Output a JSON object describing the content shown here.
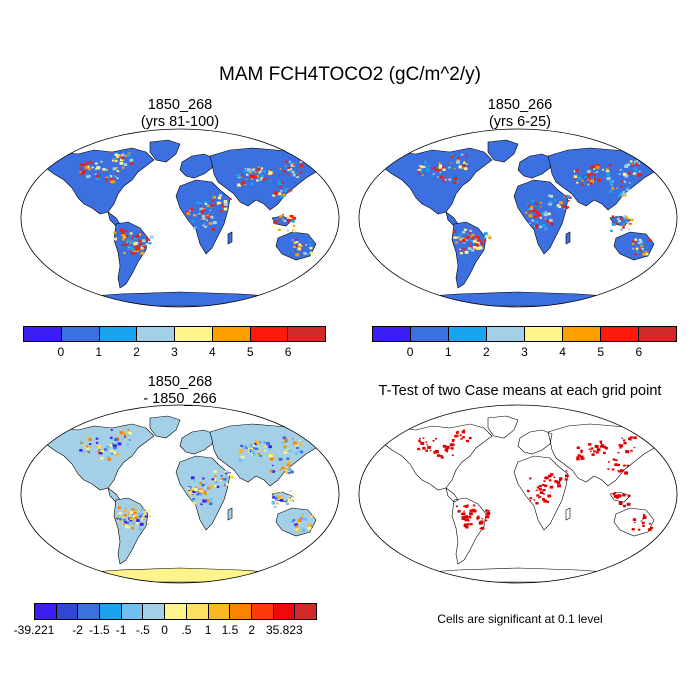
{
  "title": "MAM FCH4TOCO2 (gC/m^2/y)",
  "panels": [
    {
      "id": "p1",
      "title_line1": "1850_268",
      "title_line2": "(yrs 81-100)"
    },
    {
      "id": "p2",
      "title_line1": "1850_266",
      "title_line2": "(yrs 6-25)"
    },
    {
      "id": "p3",
      "title_line1": "1850_268",
      "title_line2": "- 1850_266"
    },
    {
      "id": "p4",
      "title_line1": "T-Test of two Case means at each grid point",
      "title_line2": ""
    }
  ],
  "colorbar_top": {
    "colors": [
      "#3b1ff2",
      "#3c6fe0",
      "#1aa4f0",
      "#a3d0e6",
      "#fff48c",
      "#fca000",
      "#fc1a0a",
      "#d12828"
    ],
    "labels": [
      "0",
      "1",
      "2",
      "3",
      "4",
      "5",
      "6"
    ]
  },
  "colorbar_diff": {
    "colors": [
      "#3b1ff2",
      "#2f46d6",
      "#3c6fe0",
      "#1aa4f0",
      "#6fbff0",
      "#a3d0e6",
      "#fff48c",
      "#ffe060",
      "#fcb820",
      "#fc8200",
      "#fc3a0a",
      "#ec0a0a",
      "#d12828"
    ],
    "labels": [
      "-39.221",
      "-2",
      "-1.5",
      "-1",
      "-.5",
      "0",
      ".5",
      "1",
      "1.5",
      "2",
      "35.823"
    ]
  },
  "significance_note": "Cells are significant at 0.1 level",
  "colors": {
    "ocean": "#ffffff",
    "land_abs": "#3c6fe0",
    "land_diff": "#a3d0e6",
    "significant": "#e00000",
    "antarctica_diff": "#fff48c"
  }
}
